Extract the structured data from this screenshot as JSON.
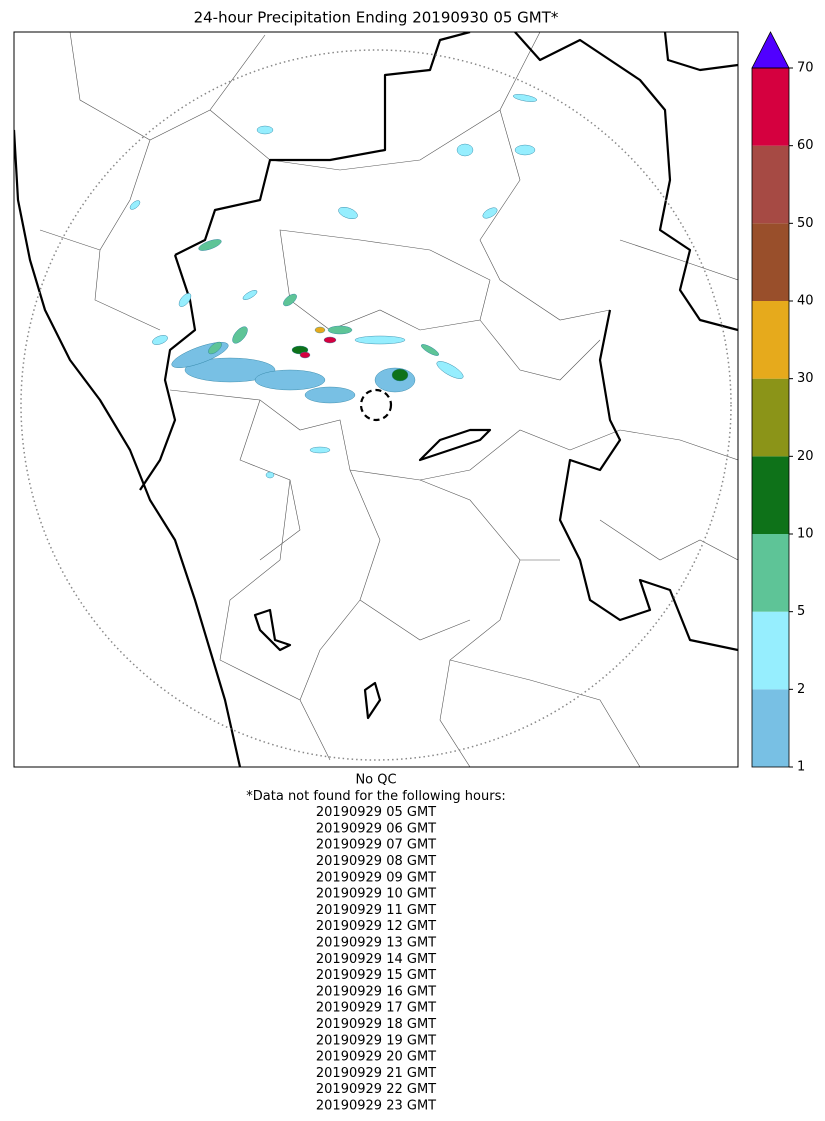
{
  "title": "24-hour Precipitation Ending 20190930 05 GMT*",
  "colorbar": {
    "bounds": [
      1,
      2,
      5,
      10,
      20,
      30,
      40,
      50,
      60,
      70
    ],
    "colors": [
      "#78c0e4",
      "#96eefe",
      "#5ec497",
      "#0e7219",
      "#8b9418",
      "#e6aa1c",
      "#994f2b",
      "#a64a44",
      "#d5003f"
    ],
    "extend_color": "#5000ff"
  },
  "notes": [
    "No QC",
    "*Data not found for the following hours:"
  ],
  "missing_hours": [
    "20190929 05 GMT",
    "20190929 06 GMT",
    "20190929 07 GMT",
    "20190929 08 GMT",
    "20190929 09 GMT",
    "20190929 10 GMT",
    "20190929 11 GMT",
    "20190929 12 GMT",
    "20190929 13 GMT",
    "20190929 14 GMT",
    "20190929 15 GMT",
    "20190929 16 GMT",
    "20190929 17 GMT",
    "20190929 18 GMT",
    "20190929 19 GMT",
    "20190929 20 GMT",
    "20190929 21 GMT",
    "20190929 22 GMT",
    "20190929 23 GMT"
  ]
}
